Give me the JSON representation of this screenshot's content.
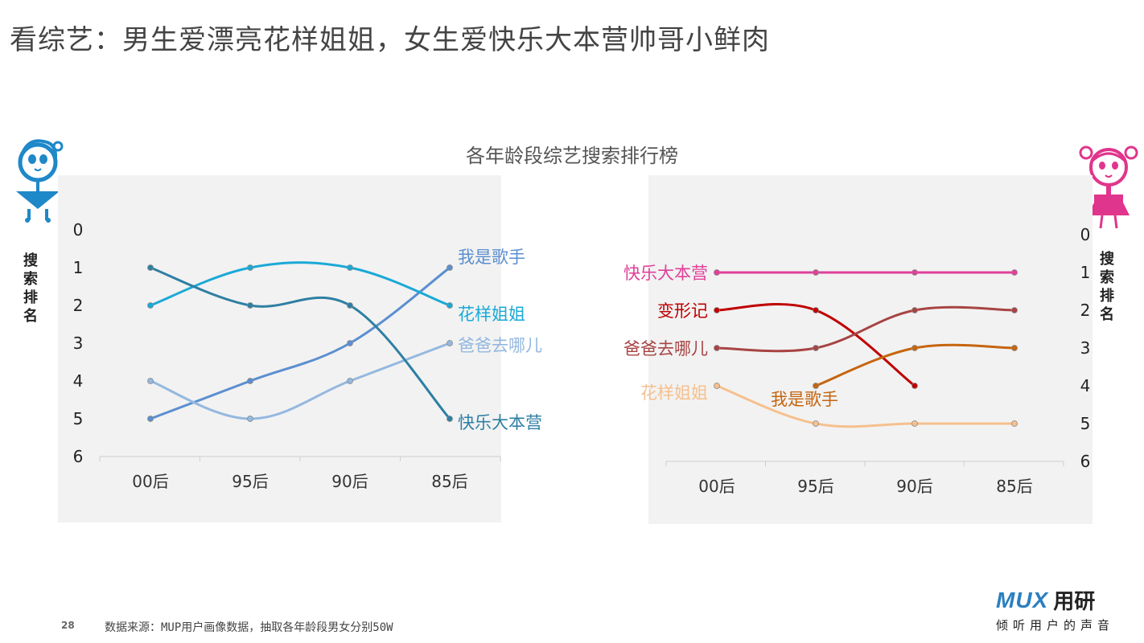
{
  "page": {
    "title": "看综艺：男生爱漂亮花样姐姐，女生爱快乐大本营帅哥小鲜肉",
    "page_number": "28",
    "source": "数据来源：MUP用户画像数据，抽取各年龄段男女分别50W",
    "logo": {
      "brand": "MUX",
      "name": "用研",
      "slogan": "倾听用户的声音"
    },
    "icons": {
      "male": "boy-icon",
      "female": "girl-icon"
    }
  },
  "chart_data": [
    {
      "type": "line",
      "title": "各年龄段综艺搜索排行榜",
      "group": "男生",
      "ylabel": "搜索排名",
      "categories": [
        "00后",
        "95后",
        "90后",
        "85后"
      ],
      "ylim": [
        0,
        6
      ],
      "yticks": [
        "0",
        "1",
        "2",
        "3",
        "4",
        "5",
        "6"
      ],
      "y_inverted": true,
      "series": [
        {
          "name": "我是歌手",
          "color": "#5b8fd0",
          "values": [
            5,
            4,
            3,
            1
          ]
        },
        {
          "name": "花样姐姐",
          "color": "#1aa9d6",
          "values": [
            2,
            1,
            1,
            2
          ]
        },
        {
          "name": "爸爸去哪儿",
          "color": "#94b8e0",
          "values": [
            4,
            5,
            4,
            3
          ]
        },
        {
          "name": "快乐大本营",
          "color": "#2e7fa3",
          "values": [
            1,
            2,
            2,
            5
          ]
        }
      ]
    },
    {
      "type": "line",
      "title": "",
      "group": "女生",
      "ylabel": "搜索排名",
      "categories": [
        "00后",
        "95后",
        "90后",
        "85后"
      ],
      "ylim": [
        0,
        6
      ],
      "yticks": [
        "0",
        "1",
        "2",
        "3",
        "4",
        "5",
        "6"
      ],
      "y_inverted": true,
      "series": [
        {
          "name": "快乐大本营",
          "color": "#e0409a",
          "values": [
            1,
            1,
            1,
            1
          ]
        },
        {
          "name": "变形记",
          "color": "#c00000",
          "values": [
            2,
            2,
            4,
            null
          ]
        },
        {
          "name": "爸爸去哪儿",
          "color": "#a84444",
          "values": [
            3,
            3,
            2,
            2
          ]
        },
        {
          "name": "花样姐姐",
          "color": "#f6c08e",
          "values": [
            4,
            5,
            5,
            5
          ]
        },
        {
          "name": "我是歌手",
          "color": "#c5650f",
          "values": [
            null,
            4,
            3,
            3
          ]
        }
      ]
    }
  ]
}
